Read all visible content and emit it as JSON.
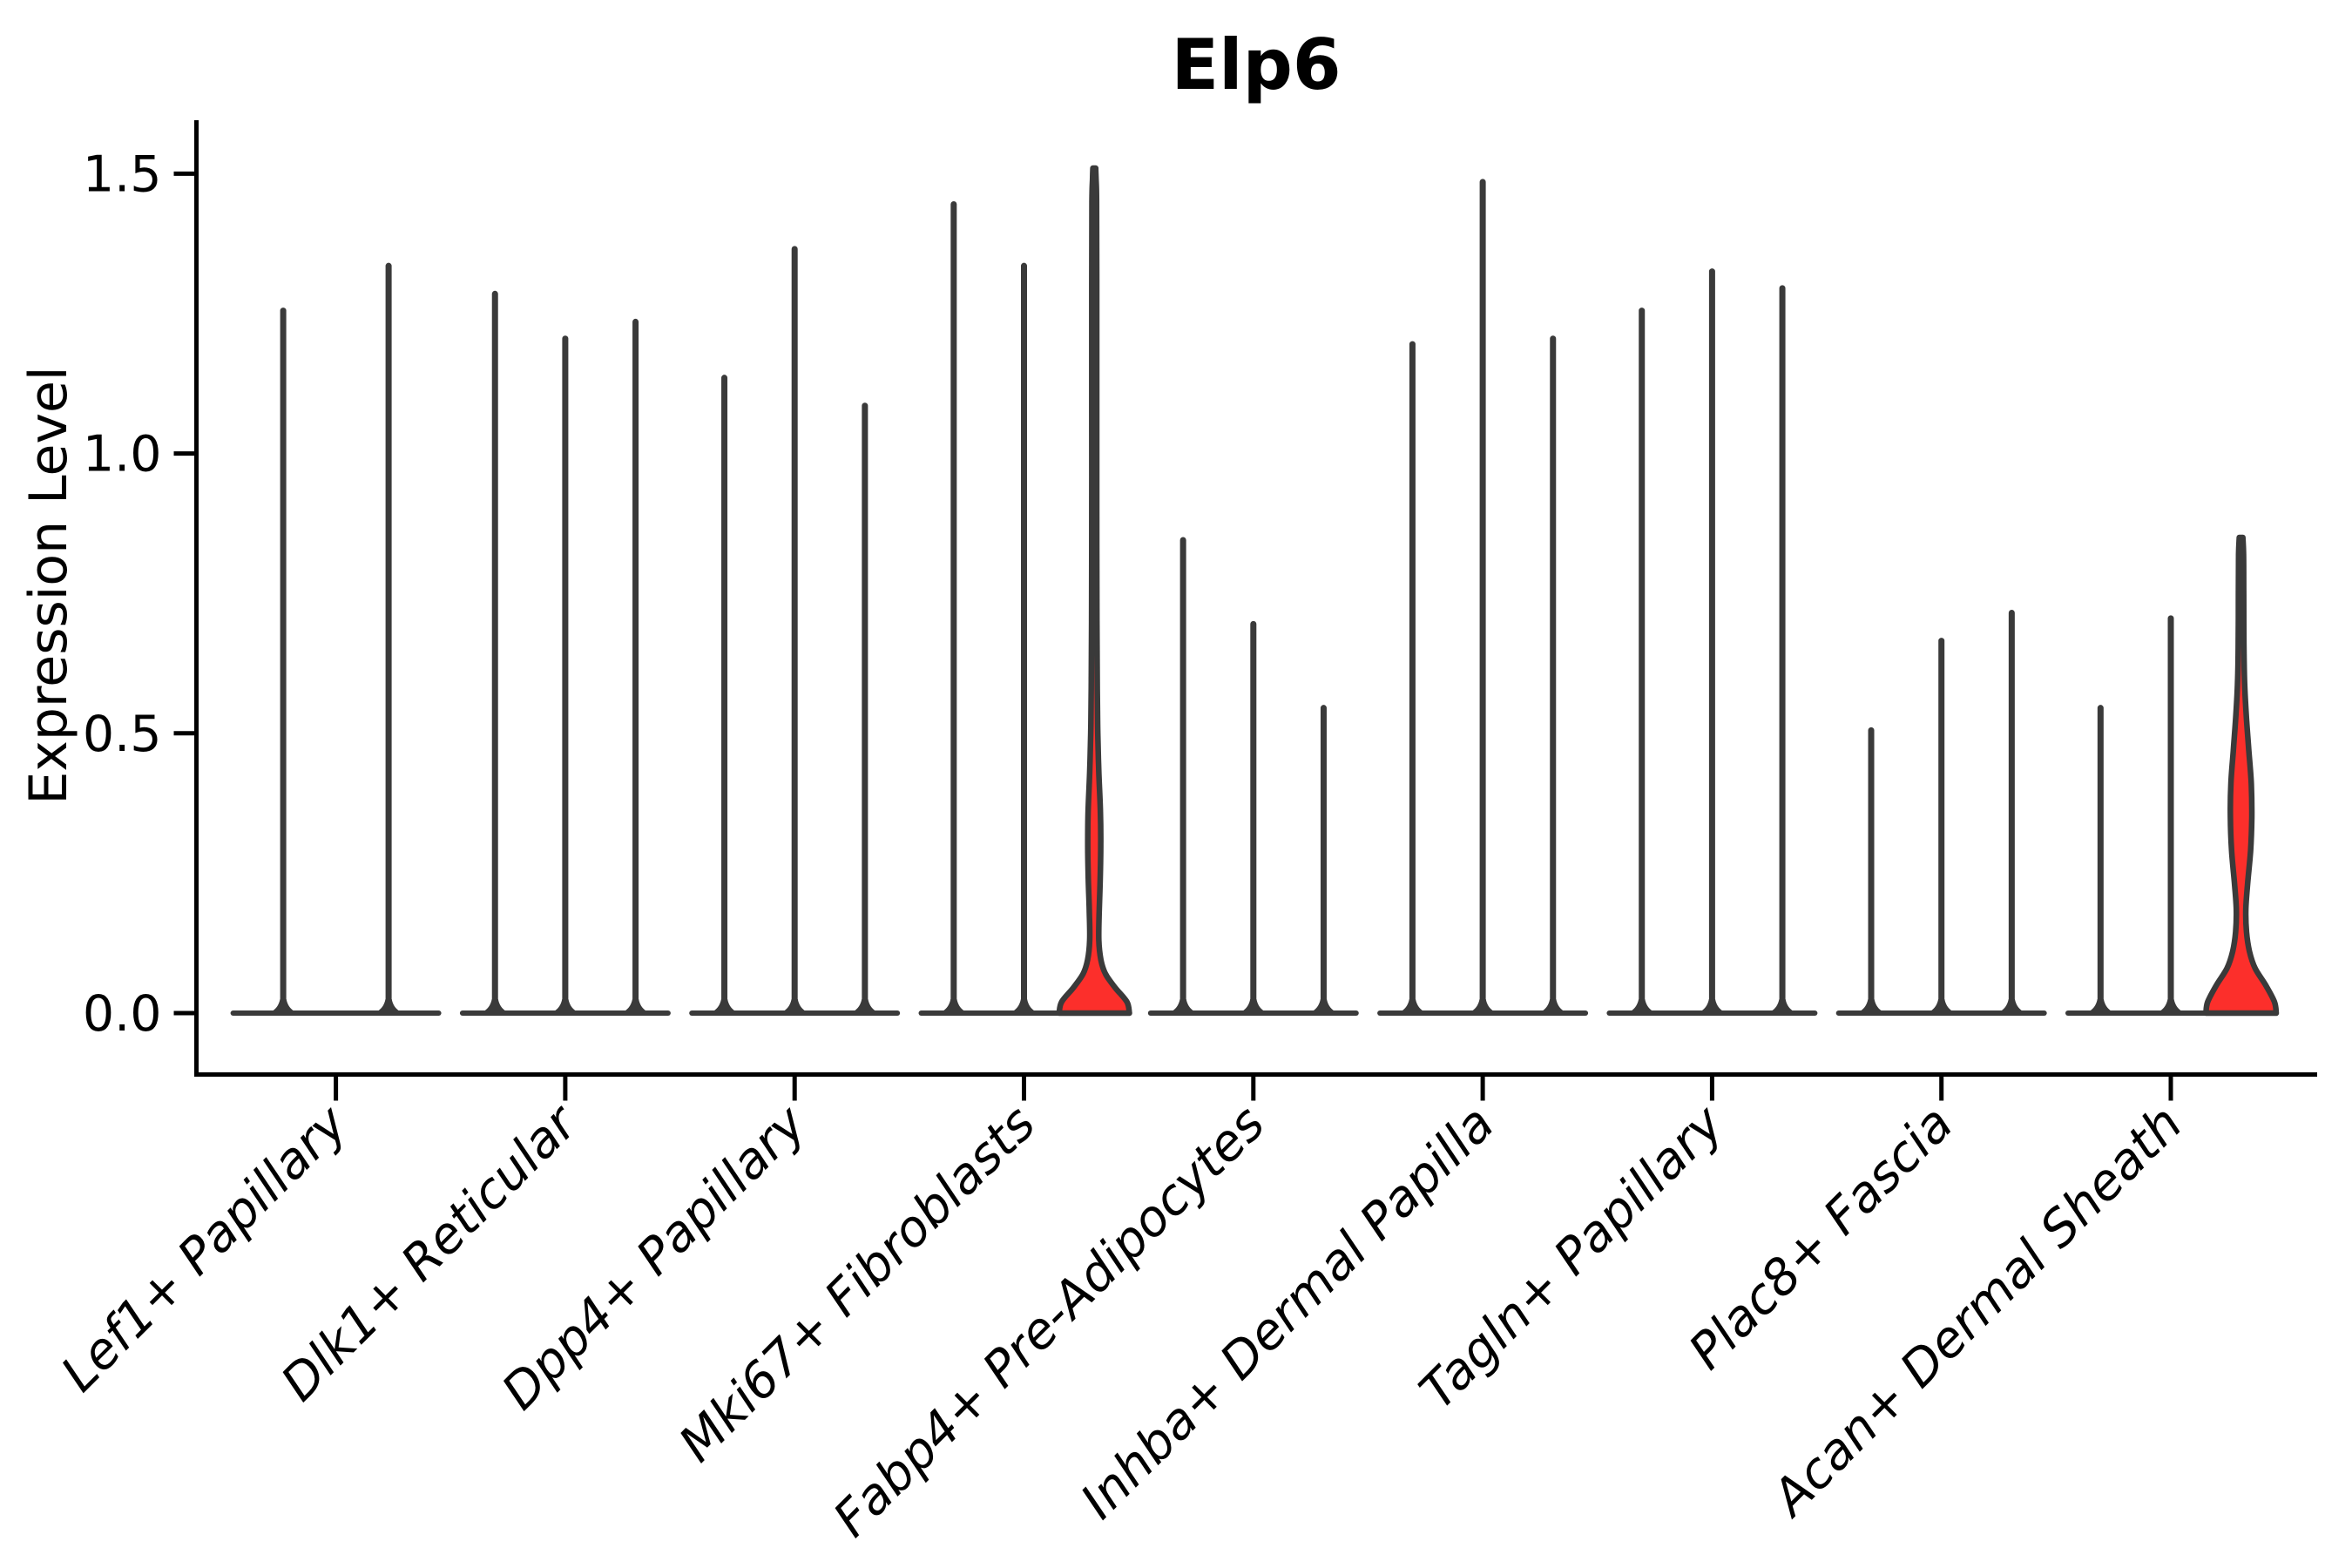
{
  "title": "Elp6",
  "ylabel": "Expression Level",
  "chart_data": {
    "type": "violin",
    "title": "Elp6",
    "xlabel": "",
    "ylabel": "Expression Level",
    "ylim": [
      0,
      1.59
    ],
    "yticks": [
      0.0,
      0.5,
      1.0,
      1.5
    ],
    "ytick_labels": [
      "0.0",
      "0.5",
      "1.0",
      "1.5"
    ],
    "grid": "off",
    "legend": "none",
    "categories": [
      "Lef1+ Papillary",
      "Dlk1+ Reticular",
      "Dpp4+ Papillary",
      "Mki67+ Fibroblasts",
      "Fabp4+ Pre-Adipocytes",
      "Inhba+ Dermal Papilla",
      "Tagln+ Papillary",
      "Plac8+ Fascia",
      "Acan+ Dermal Sheath"
    ],
    "groups": [
      {
        "label": "Lef1+ Papillary",
        "violins": [
          {
            "max": 1.26
          },
          {
            "max": 1.34
          }
        ]
      },
      {
        "label": "Dlk1+ Reticular",
        "violins": [
          {
            "max": 1.29
          },
          {
            "max": 1.21
          },
          {
            "max": 1.24
          }
        ]
      },
      {
        "label": "Dpp4+ Papillary",
        "violins": [
          {
            "max": 1.14
          },
          {
            "max": 1.37
          },
          {
            "max": 1.09
          }
        ]
      },
      {
        "label": "Mki67+ Fibroblasts",
        "violins": [
          {
            "max": 1.45
          },
          {
            "max": 1.34
          },
          {
            "max": 1.51,
            "highlight": true,
            "profile": [
              [
                0,
                1.0
              ],
              [
                0.02,
                0.93
              ],
              [
                0.045,
                0.6
              ],
              [
                0.07,
                0.32
              ],
              [
                0.095,
                0.19
              ],
              [
                0.13,
                0.13
              ],
              [
                0.18,
                0.14
              ],
              [
                0.24,
                0.17
              ],
              [
                0.3,
                0.185
              ],
              [
                0.36,
                0.175
              ],
              [
                0.43,
                0.13
              ],
              [
                0.5,
                0.1
              ],
              [
                0.58,
                0.085
              ],
              [
                0.7,
                0.075
              ],
              [
                0.9,
                0.07
              ],
              [
                1.1,
                0.07
              ],
              [
                1.3,
                0.07
              ],
              [
                1.45,
                0.065
              ],
              [
                1.49,
                0.05
              ],
              [
                1.51,
                0.03
              ]
            ]
          }
        ]
      },
      {
        "label": "Fabp4+ Pre-Adipocytes",
        "violins": [
          {
            "max": 0.85
          },
          {
            "max": 0.7
          },
          {
            "max": 0.55
          }
        ]
      },
      {
        "label": "Inhba+ Dermal Papilla",
        "violins": [
          {
            "max": 1.2
          },
          {
            "max": 1.49
          },
          {
            "max": 1.21
          }
        ]
      },
      {
        "label": "Tagln+ Papillary",
        "violins": [
          {
            "max": 1.26
          },
          {
            "max": 1.33
          },
          {
            "max": 1.3
          }
        ]
      },
      {
        "label": "Plac8+ Fascia",
        "violins": [
          {
            "max": 0.51
          },
          {
            "max": 0.67
          },
          {
            "max": 0.72
          }
        ]
      },
      {
        "label": "Acan+ Dermal Sheath",
        "violins": [
          {
            "max": 0.55
          },
          {
            "max": 0.71
          },
          {
            "max": 0.85,
            "highlight": true,
            "profile": [
              [
                0,
                1.0
              ],
              [
                0.02,
                0.95
              ],
              [
                0.05,
                0.7
              ],
              [
                0.08,
                0.4
              ],
              [
                0.11,
                0.24
              ],
              [
                0.145,
                0.155
              ],
              [
                0.185,
                0.135
              ],
              [
                0.23,
                0.185
              ],
              [
                0.29,
                0.27
              ],
              [
                0.35,
                0.305
              ],
              [
                0.41,
                0.29
              ],
              [
                0.47,
                0.22
              ],
              [
                0.53,
                0.15
              ],
              [
                0.59,
                0.1
              ],
              [
                0.66,
                0.08
              ],
              [
                0.75,
                0.075
              ],
              [
                0.82,
                0.07
              ],
              [
                0.85,
                0.05
              ]
            ]
          }
        ]
      }
    ],
    "colors": {
      "highlight_fill": "#FC2F2B",
      "violin_stroke": "#3A3A3A",
      "axis": "#000000",
      "background": "#FFFFFF"
    }
  }
}
